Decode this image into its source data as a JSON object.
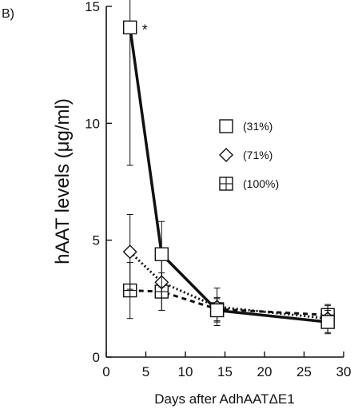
{
  "panel_label": "B)",
  "chart_data": {
    "type": "line",
    "title": "",
    "xlabel": "Days after AdhAATΔE1",
    "ylabel": "hAAT levels (μg/ml)",
    "xlim": [
      0,
      30
    ],
    "ylim": [
      0,
      15
    ],
    "xticks": [
      0,
      5,
      10,
      15,
      20,
      25,
      30
    ],
    "yticks": [
      0,
      5,
      10,
      15
    ],
    "grid": false,
    "legend_position": "right",
    "series": [
      {
        "name": "(31%)",
        "marker": "square",
        "line_style": "solid",
        "x": [
          3,
          7,
          14,
          28
        ],
        "y": [
          14.1,
          4.4,
          2.0,
          1.5
        ],
        "err": [
          5.9,
          1.4,
          0.5,
          0.5
        ]
      },
      {
        "name": "(71%)",
        "marker": "diamond",
        "line_style": "dotted",
        "x": [
          3,
          7,
          14,
          28
        ],
        "y": [
          4.5,
          3.2,
          2.15,
          1.65
        ],
        "err": [
          1.6,
          1.2,
          0.8,
          0.6
        ]
      },
      {
        "name": "(100%)",
        "marker": "crossed-square",
        "line_style": "dashed",
        "x": [
          3,
          7,
          14,
          28
        ],
        "y": [
          2.85,
          2.8,
          2.05,
          1.8
        ],
        "err": [
          1.2,
          0.8,
          0.5,
          0.4
        ]
      }
    ],
    "annotations": [
      {
        "text": "*",
        "x": 3,
        "y": 14.1
      }
    ]
  },
  "colors": {
    "line": "#111111",
    "background": "#ffffff"
  }
}
